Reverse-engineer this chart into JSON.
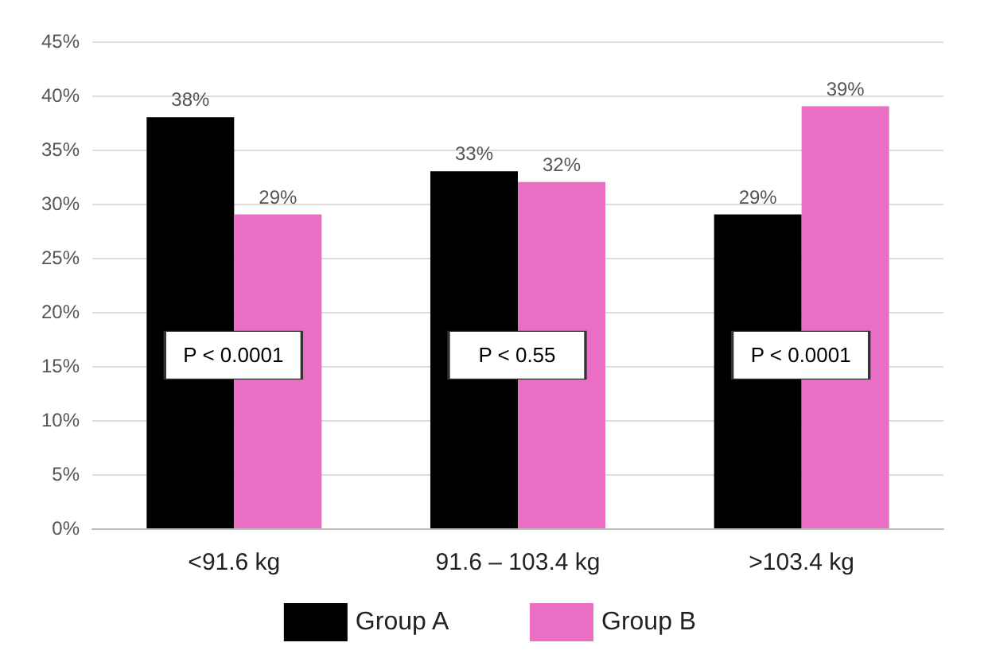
{
  "chart_data": {
    "type": "bar",
    "categories": [
      "<91.6 kg",
      "91.6 – 103.4 kg",
      ">103.4 kg"
    ],
    "series": [
      {
        "name": "Group A",
        "color": "#000000",
        "values": [
          38,
          33,
          29
        ],
        "value_labels": [
          "38%",
          "33%",
          "29%"
        ]
      },
      {
        "name": "Group B",
        "color": "#ea6fc4",
        "values": [
          29,
          32,
          39
        ],
        "value_labels": [
          "29%",
          "32%",
          "39%"
        ]
      }
    ],
    "ylim": [
      0,
      45
    ],
    "yticks": [
      {
        "value": 0,
        "label": "0%"
      },
      {
        "value": 5,
        "label": "5%"
      },
      {
        "value": 10,
        "label": "10%"
      },
      {
        "value": 15,
        "label": "15%"
      },
      {
        "value": 20,
        "label": "20%"
      },
      {
        "value": 25,
        "label": "25%"
      },
      {
        "value": 30,
        "label": "30%"
      },
      {
        "value": 35,
        "label": "35%"
      },
      {
        "value": 40,
        "label": "40%"
      },
      {
        "value": 45,
        "label": "45%"
      }
    ],
    "annotations": [
      {
        "text": "P < 0.0001",
        "x": "<91.6 kg",
        "y": 16
      },
      {
        "text": "P < 0.55",
        "x": "91.6 – 103.4 kg",
        "y": 16
      },
      {
        "text": "P < 0.0001",
        "x": ">103.4 kg",
        "y": 16
      }
    ],
    "grid": "y",
    "legend": "bottom"
  }
}
